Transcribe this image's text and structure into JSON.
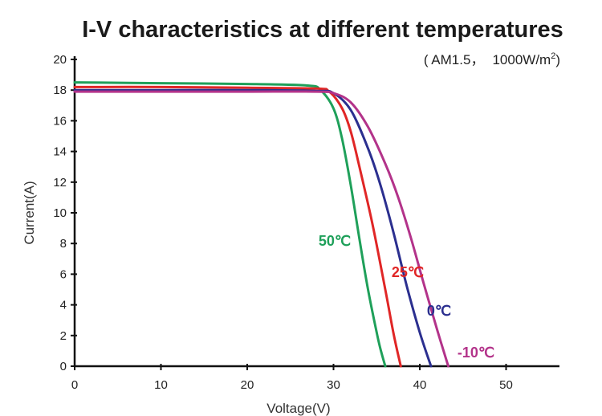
{
  "chart_data": {
    "type": "line",
    "title": "I-V characteristics at different temperatures",
    "subtitle_prefix": "( AM1.5，",
    "subtitle_irradiance": "1000W/m",
    "subtitle_superscript": "2",
    "subtitle_suffix": ")",
    "xlabel": "Voltage(V)",
    "ylabel": "Current(A)",
    "xlim": [
      0,
      55
    ],
    "ylim": [
      0,
      20
    ],
    "x_ticks": [
      "0",
      "10",
      "20",
      "30",
      "40",
      "50"
    ],
    "y_ticks": [
      "0",
      "2",
      "4",
      "6",
      "8",
      "10",
      "12",
      "14",
      "16",
      "18",
      "20"
    ],
    "grid": false,
    "series": [
      {
        "name": "50℃",
        "color": "#1fa05a",
        "x": [
          0,
          10,
          20,
          27,
          28.5,
          30,
          31,
          32,
          33,
          34,
          35,
          35.5,
          36
        ],
        "y": [
          18.5,
          18.45,
          18.4,
          18.3,
          18.0,
          16.8,
          14.8,
          11.8,
          8.3,
          5.0,
          2.2,
          1.0,
          0
        ]
      },
      {
        "name": "25℃",
        "color": "#e02626",
        "x": [
          0,
          10,
          20,
          28,
          29.5,
          31,
          32,
          33,
          34.5,
          36,
          37,
          37.8
        ],
        "y": [
          18.2,
          18.2,
          18.15,
          18.1,
          17.9,
          16.8,
          15.3,
          13.0,
          9.3,
          5.0,
          2.0,
          0
        ]
      },
      {
        "name": "0℃",
        "color": "#2b2f8f",
        "x": [
          0,
          10,
          20,
          28,
          30,
          32,
          34,
          35.5,
          37,
          38.5,
          40,
          41.3
        ],
        "y": [
          18.0,
          18.0,
          18.0,
          17.95,
          17.8,
          16.7,
          14.2,
          11.7,
          8.6,
          5.2,
          2.2,
          0
        ]
      },
      {
        "name": "-10℃",
        "color": "#b3338a",
        "x": [
          0,
          10,
          20,
          28,
          30,
          32,
          34,
          36,
          37.5,
          39,
          40.5,
          42,
          43.3
        ],
        "y": [
          17.9,
          17.9,
          17.9,
          17.9,
          17.8,
          17.2,
          15.6,
          13.2,
          11.0,
          8.3,
          5.3,
          2.4,
          0
        ]
      }
    ]
  }
}
